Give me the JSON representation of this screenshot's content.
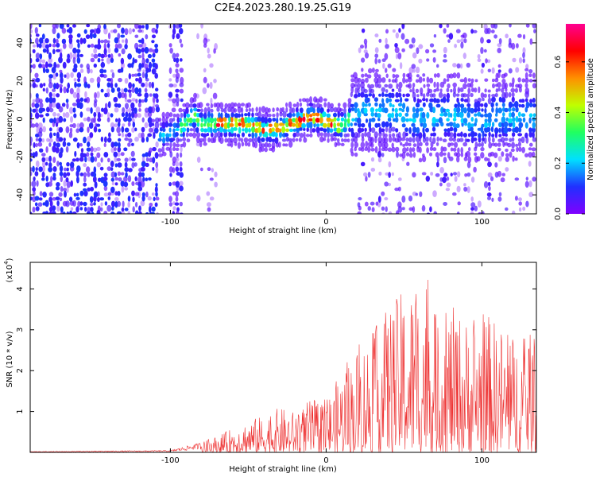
{
  "title": "C2E4.2023.280.19.25.G19",
  "chart_data": [
    {
      "type": "heatmap",
      "title": "",
      "xlabel": "Height of straight line (km)",
      "ylabel": "Frequency (Hz)",
      "xlim": [
        -190,
        135
      ],
      "ylim": [
        -50,
        50
      ],
      "x_ticks": [
        -100,
        0,
        100
      ],
      "y_ticks": [
        -40,
        -20,
        0,
        20,
        40
      ],
      "colorbar": {
        "label": "Normalized spectral amplitude",
        "range": [
          0,
          0.75
        ],
        "ticks": [
          0.0,
          0.2,
          0.4,
          0.6
        ],
        "colormap": [
          "#8000ff",
          "#2030ff",
          "#00e0ff",
          "#20ff60",
          "#c0ff00",
          "#ff9000",
          "#ff0000",
          "#ff0090"
        ]
      },
      "ridge": {
        "x": [
          -108,
          -100,
          -92,
          -85,
          -80,
          -70,
          -60,
          -50,
          -40,
          -30,
          -20,
          -10,
          0,
          10,
          20,
          30,
          40,
          50,
          60,
          70,
          80,
          90,
          100,
          110,
          120,
          130
        ],
        "y": [
          -10,
          -7,
          -4,
          2,
          -3,
          -2,
          -3,
          -3,
          -6,
          -5,
          -2,
          1,
          -1,
          -4,
          4,
          4,
          5,
          2,
          0,
          1,
          2,
          0,
          -2,
          2,
          0,
          1
        ]
      },
      "noise_regions": [
        {
          "x": [
            -190,
            -108
          ],
          "level": 0.2
        },
        {
          "x": [
            -100,
            -92
          ],
          "level": 0.15
        },
        {
          "x": [
            -84,
            -70
          ],
          "level": 0.05
        },
        {
          "x": [
            20,
            135
          ],
          "level": 0.1
        }
      ]
    },
    {
      "type": "line",
      "title": "",
      "xlabel": "Height of straight line (km)",
      "ylabel": "SNR (10 * v/v)",
      "y_multiplier": "(x10",
      "y_multiplier_exp": "4",
      "y_multiplier_close": ")",
      "xlim": [
        -190,
        135
      ],
      "ylim": [
        0,
        4.65
      ],
      "x_ticks": [
        -100,
        0,
        100
      ],
      "y_ticks": [
        1,
        2,
        3,
        4
      ],
      "series": [
        {
          "color": "#ee3333",
          "envelope_x": [
            -190,
            -100,
            -80,
            -70,
            -60,
            -50,
            -40,
            -30,
            -20,
            -10,
            0,
            10,
            20,
            30,
            40,
            50,
            60,
            65,
            70,
            80,
            90,
            100,
            110,
            120,
            135
          ],
          "envelope_y": [
            0.02,
            0.05,
            0.25,
            0.4,
            0.6,
            0.8,
            0.9,
            1.1,
            1.0,
            1.3,
            1.3,
            2.0,
            2.6,
            3.0,
            3.6,
            4.0,
            4.2,
            4.6,
            3.4,
            3.6,
            3.3,
            3.5,
            3.2,
            2.9,
            2.9
          ]
        }
      ]
    }
  ]
}
